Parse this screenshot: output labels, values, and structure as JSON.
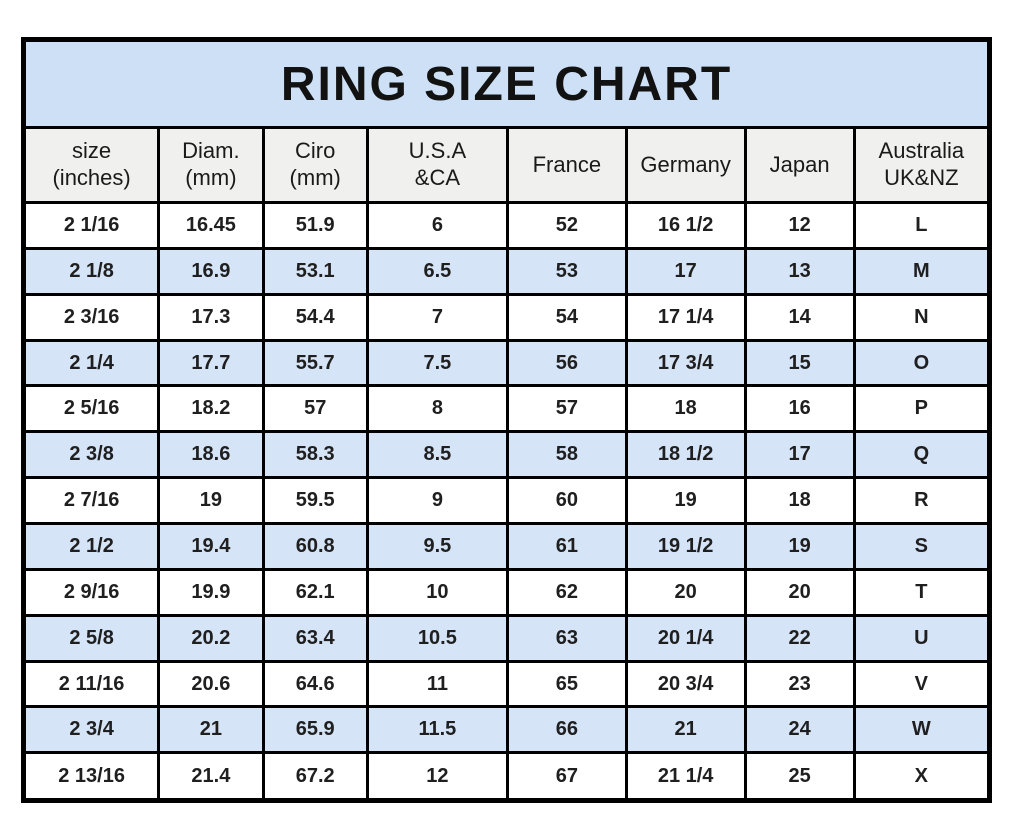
{
  "title": "RING SIZE CHART",
  "colors": {
    "page_bg": "#ffffff",
    "title_band": "#cde0f5",
    "header_band": "#f0f0ee",
    "stripe": "#d6e4f7",
    "border": "#000000",
    "text": "#1e1e1e"
  },
  "chart_data": {
    "type": "table",
    "title": "RING SIZE CHART",
    "grid": "on",
    "columns": [
      {
        "label": "size (inches)",
        "lines": [
          "size",
          "(inches)"
        ]
      },
      {
        "label": "Diam. (mm)",
        "lines": [
          "Diam.",
          "(mm)"
        ]
      },
      {
        "label": "Ciro (mm)",
        "lines": [
          "Ciro",
          "(mm)"
        ]
      },
      {
        "label": "U.S.A &CA",
        "lines": [
          "U.S.A",
          "&CA"
        ]
      },
      {
        "label": "France",
        "lines": [
          "France"
        ]
      },
      {
        "label": "Germany",
        "lines": [
          "Germany"
        ]
      },
      {
        "label": "Japan",
        "lines": [
          "Japan"
        ]
      },
      {
        "label": "Australia UK&NZ",
        "lines": [
          "Australia",
          "UK&NZ"
        ]
      }
    ],
    "rows": [
      [
        "2 1/16",
        "16.45",
        "51.9",
        "6",
        "52",
        "16 1/2",
        "12",
        "L"
      ],
      [
        "2 1/8",
        "16.9",
        "53.1",
        "6.5",
        "53",
        "17",
        "13",
        "M"
      ],
      [
        "2 3/16",
        "17.3",
        "54.4",
        "7",
        "54",
        "17 1/4",
        "14",
        "N"
      ],
      [
        "2 1/4",
        "17.7",
        "55.7",
        "7.5",
        "56",
        "17 3/4",
        "15",
        "O"
      ],
      [
        "2 5/16",
        "18.2",
        "57",
        "8",
        "57",
        "18",
        "16",
        "P"
      ],
      [
        "2 3/8",
        "18.6",
        "58.3",
        "8.5",
        "58",
        "18 1/2",
        "17",
        "Q"
      ],
      [
        "2 7/16",
        "19",
        "59.5",
        "9",
        "60",
        "19",
        "18",
        "R"
      ],
      [
        "2 1/2",
        "19.4",
        "60.8",
        "9.5",
        "61",
        "19 1/2",
        "19",
        "S"
      ],
      [
        "2 9/16",
        "19.9",
        "62.1",
        "10",
        "62",
        "20",
        "20",
        "T"
      ],
      [
        "2 5/8",
        "20.2",
        "63.4",
        "10.5",
        "63",
        "20 1/4",
        "22",
        "U"
      ],
      [
        "2 11/16",
        "20.6",
        "64.6",
        "11",
        "65",
        "20 3/4",
        "23",
        "V"
      ],
      [
        "2 3/4",
        "21",
        "65.9",
        "11.5",
        "66",
        "21",
        "24",
        "W"
      ],
      [
        "2 13/16",
        "21.4",
        "67.2",
        "12",
        "67",
        "21 1/4",
        "25",
        "X"
      ]
    ]
  }
}
